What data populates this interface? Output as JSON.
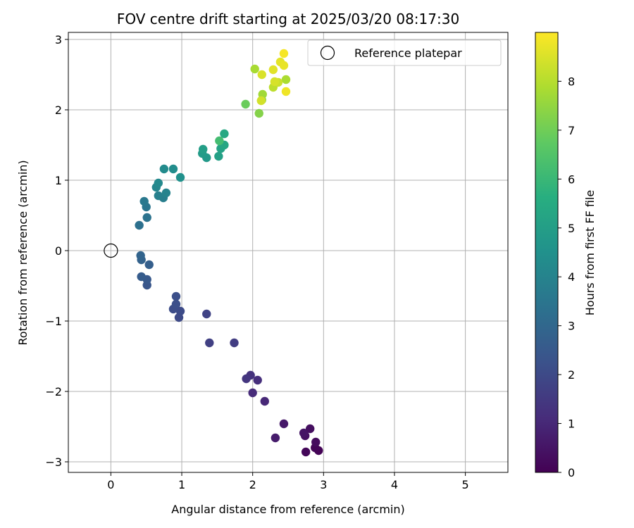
{
  "chart_data": {
    "type": "scatter",
    "title": "FOV centre drift starting at 2025/03/20 08:17:30",
    "xlabel": "Angular distance from reference (arcmin)",
    "ylabel": "Rotation from reference (arcmin)",
    "xlim": [
      -0.6,
      5.6
    ],
    "ylim": [
      -3.15,
      3.1
    ],
    "xticks": [
      0,
      1,
      2,
      3,
      4,
      5
    ],
    "yticks": [
      -3,
      -2,
      -1,
      0,
      1,
      2,
      3
    ],
    "grid": true,
    "legend": {
      "position": "top-right",
      "entries": [
        {
          "label": "Reference platepar",
          "marker": "open-circle"
        }
      ]
    },
    "reference_point": {
      "x": 0,
      "y": 0
    },
    "colorbar": {
      "label": "Hours from first FF file",
      "colormap": "viridis",
      "range": [
        0,
        9
      ],
      "ticks": [
        0,
        1,
        2,
        3,
        4,
        5,
        6,
        7,
        8
      ]
    },
    "points": [
      {
        "x": 2.93,
        "y": -2.84,
        "c": 0.05
      },
      {
        "x": 2.88,
        "y": -2.8,
        "c": 0.1
      },
      {
        "x": 2.75,
        "y": -2.86,
        "c": 0.15
      },
      {
        "x": 2.89,
        "y": -2.72,
        "c": 0.25
      },
      {
        "x": 2.81,
        "y": -2.53,
        "c": 0.35
      },
      {
        "x": 2.74,
        "y": -2.63,
        "c": 0.4
      },
      {
        "x": 2.72,
        "y": -2.59,
        "c": 0.5
      },
      {
        "x": 2.44,
        "y": -2.46,
        "c": 0.6
      },
      {
        "x": 2.32,
        "y": -2.66,
        "c": 0.7
      },
      {
        "x": 2.17,
        "y": -2.14,
        "c": 1.0
      },
      {
        "x": 2.0,
        "y": -2.02,
        "c": 1.1
      },
      {
        "x": 2.07,
        "y": -1.84,
        "c": 1.2
      },
      {
        "x": 1.97,
        "y": -1.77,
        "c": 1.3
      },
      {
        "x": 1.91,
        "y": -1.82,
        "c": 1.4
      },
      {
        "x": 1.74,
        "y": -1.31,
        "c": 1.6
      },
      {
        "x": 1.39,
        "y": -1.31,
        "c": 1.7
      },
      {
        "x": 1.35,
        "y": -0.9,
        "c": 1.8
      },
      {
        "x": 0.96,
        "y": -0.95,
        "c": 2.0
      },
      {
        "x": 0.98,
        "y": -0.86,
        "c": 2.05
      },
      {
        "x": 0.88,
        "y": -0.83,
        "c": 2.1
      },
      {
        "x": 0.92,
        "y": -0.76,
        "c": 2.15
      },
      {
        "x": 0.92,
        "y": -0.65,
        "c": 2.2
      },
      {
        "x": 0.51,
        "y": -0.49,
        "c": 2.4
      },
      {
        "x": 0.51,
        "y": -0.41,
        "c": 2.5
      },
      {
        "x": 0.43,
        "y": -0.37,
        "c": 2.6
      },
      {
        "x": 0.54,
        "y": -0.2,
        "c": 2.7
      },
      {
        "x": 0.43,
        "y": -0.13,
        "c": 2.8
      },
      {
        "x": 0.42,
        "y": -0.07,
        "c": 2.9
      },
      {
        "x": 0.4,
        "y": 0.36,
        "c": 3.3
      },
      {
        "x": 0.51,
        "y": 0.47,
        "c": 3.4
      },
      {
        "x": 0.5,
        "y": 0.62,
        "c": 3.5
      },
      {
        "x": 0.47,
        "y": 0.7,
        "c": 3.6
      },
      {
        "x": 0.74,
        "y": 0.75,
        "c": 3.8
      },
      {
        "x": 0.67,
        "y": 0.78,
        "c": 3.9
      },
      {
        "x": 0.78,
        "y": 0.82,
        "c": 4.0
      },
      {
        "x": 0.64,
        "y": 0.9,
        "c": 4.1
      },
      {
        "x": 0.67,
        "y": 0.96,
        "c": 4.2
      },
      {
        "x": 0.75,
        "y": 1.16,
        "c": 4.3
      },
      {
        "x": 0.88,
        "y": 1.16,
        "c": 4.35
      },
      {
        "x": 0.98,
        "y": 1.04,
        "c": 4.5
      },
      {
        "x": 1.35,
        "y": 1.32,
        "c": 4.8
      },
      {
        "x": 1.29,
        "y": 1.38,
        "c": 4.9
      },
      {
        "x": 1.3,
        "y": 1.44,
        "c": 5.0
      },
      {
        "x": 1.52,
        "y": 1.34,
        "c": 5.1
      },
      {
        "x": 1.55,
        "y": 1.45,
        "c": 5.2
      },
      {
        "x": 1.6,
        "y": 1.5,
        "c": 5.3
      },
      {
        "x": 1.6,
        "y": 1.66,
        "c": 5.4
      },
      {
        "x": 1.53,
        "y": 1.56,
        "c": 6.2
      },
      {
        "x": 1.9,
        "y": 2.08,
        "c": 6.9
      },
      {
        "x": 2.09,
        "y": 1.95,
        "c": 7.3
      },
      {
        "x": 2.13,
        "y": 2.14,
        "c": 7.5
      },
      {
        "x": 2.14,
        "y": 2.22,
        "c": 7.7
      },
      {
        "x": 2.03,
        "y": 2.58,
        "c": 7.8
      },
      {
        "x": 2.47,
        "y": 2.43,
        "c": 7.85
      },
      {
        "x": 2.29,
        "y": 2.32,
        "c": 8.1
      },
      {
        "x": 2.36,
        "y": 2.39,
        "c": 8.3
      },
      {
        "x": 2.12,
        "y": 2.13,
        "c": 8.4
      },
      {
        "x": 2.31,
        "y": 2.4,
        "c": 8.45
      },
      {
        "x": 2.13,
        "y": 2.5,
        "c": 8.5
      },
      {
        "x": 2.29,
        "y": 2.57,
        "c": 8.6
      },
      {
        "x": 2.39,
        "y": 2.68,
        "c": 8.65
      },
      {
        "x": 2.44,
        "y": 2.63,
        "c": 8.7
      },
      {
        "x": 2.47,
        "y": 2.26,
        "c": 8.8
      },
      {
        "x": 2.44,
        "y": 2.8,
        "c": 8.9
      }
    ]
  }
}
